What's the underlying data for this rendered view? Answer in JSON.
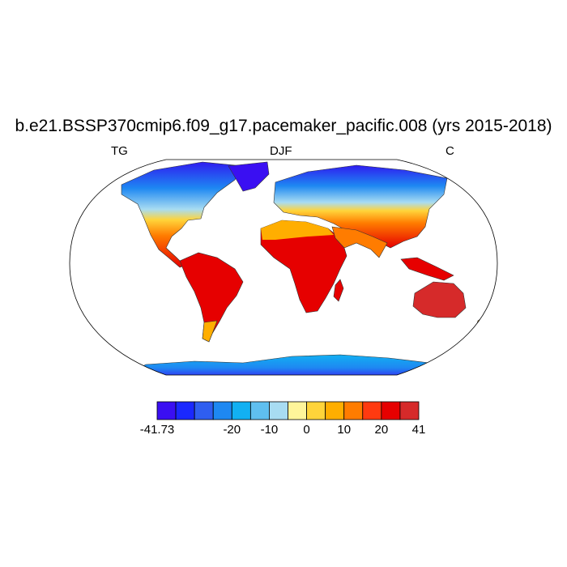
{
  "title": "b.e21.BSSP370cmip6.f09_g17.pacemaker_pacific.008 (yrs 2015-2018)",
  "left_label": "TG",
  "center_label": "DJF",
  "right_label": "C",
  "colorbar": {
    "colors": [
      "#3a0ff2",
      "#1a28ff",
      "#2f5ef0",
      "#1e88f2",
      "#12b0f2",
      "#5fbff0",
      "#a8dcf2",
      "#fff59a",
      "#ffd43a",
      "#ffae00",
      "#ff7c00",
      "#ff3a10",
      "#e60000",
      "#d62a2a"
    ],
    "tick_labels": [
      "-41.73",
      "-20",
      "-10",
      "0",
      "10",
      "20",
      "41"
    ]
  },
  "chart_data": {
    "type": "heatmap",
    "variable": "TG",
    "season": "DJF",
    "units": "C",
    "range": [
      -41.73,
      41
    ],
    "projection": "Robinson",
    "levels": [
      -41.73,
      -35,
      -30,
      -25,
      -20,
      -15,
      -10,
      -5,
      0,
      5,
      10,
      15,
      20,
      25,
      30,
      41
    ]
  }
}
